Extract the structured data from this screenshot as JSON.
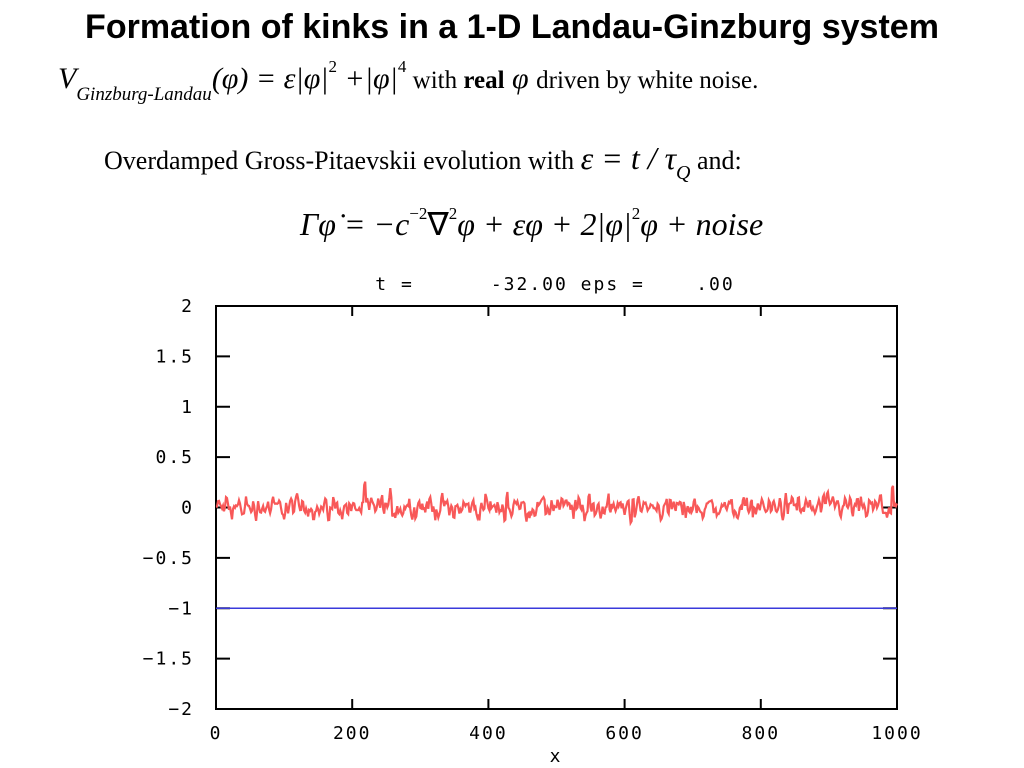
{
  "slide": {
    "title": "Formation of kinks in a 1-D Landau-Ginzburg system",
    "equation1": {
      "V": "V",
      "subscript": "Ginzburg-Landau",
      "body": "(φ) = ε|φ|",
      "sup1": "2",
      "plus": " +|φ|",
      "sup2": "4",
      "with": " with ",
      "real": "real",
      "phi": " φ ",
      "rest": "driven by white noise."
    },
    "equation2": {
      "text": "Overdamped Gross-Pitaevskii evolution with ",
      "math": "ε = t / τ",
      "sub": "Q",
      "and": " and:"
    },
    "equation3": {
      "lhs": "Γφ̇",
      "part1": " = −c",
      "sup1": "−2",
      "part2": "∇",
      "sup2": "2",
      "part3": "φ + εφ + 2|φ|",
      "sup3": "2",
      "part4": "φ + noise"
    }
  },
  "chart_data": {
    "type": "line",
    "title": "t =      -32.00 eps =    .00",
    "xlabel": "x",
    "ylabel": "",
    "xlim": [
      0,
      1000
    ],
    "ylim": [
      -2,
      2
    ],
    "xticks": [
      "0",
      "200",
      "400",
      "600",
      "800",
      "1000"
    ],
    "yticks": [
      "2",
      "1.5",
      "1",
      "0.5",
      "0",
      "−0.5",
      "−1",
      "−1.5",
      "−2"
    ],
    "grid": false,
    "colors": {
      "noise": "#f85858",
      "baseline": "#3a3adb",
      "axes": "#000000"
    },
    "series": [
      {
        "type": "noisy",
        "mean": 0.0,
        "amplitude": 0.12,
        "x_range": [
          0,
          1000
        ]
      },
      {
        "type": "constant",
        "value": -1.0,
        "x_range": [
          0,
          1000
        ]
      }
    ]
  }
}
